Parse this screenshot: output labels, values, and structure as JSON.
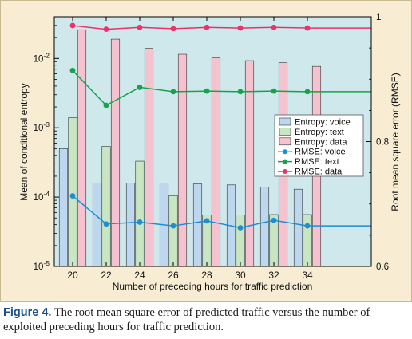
{
  "chart_data": {
    "type": "bar",
    "xlabel": "Number of preceding hours for traffic prediction",
    "ylabel_left": "Mean of conditional entropy",
    "ylabel_right": "Root mean square error (RMSE)",
    "categories": [
      20,
      22,
      24,
      26,
      28,
      30,
      32,
      34
    ],
    "x_ticks": [
      "20",
      "22",
      "24",
      "26",
      "28",
      "30",
      "32",
      "34"
    ],
    "left_axis": {
      "scale": "log",
      "ylim": [
        1e-05,
        0.04
      ],
      "ticks": [
        {
          "value": 1e-05,
          "base": "10",
          "exp": "-5"
        },
        {
          "value": 0.0001,
          "base": "10",
          "exp": "-4"
        },
        {
          "value": 0.001,
          "base": "10",
          "exp": "-3"
        },
        {
          "value": 0.01,
          "base": "10",
          "exp": "-2"
        }
      ]
    },
    "right_axis": {
      "scale": "linear",
      "ylim": [
        0.6,
        1.0
      ],
      "ticks": [
        "0.6",
        "0.8",
        "1"
      ],
      "tick_values": [
        0.6,
        0.8,
        1.0
      ]
    },
    "bar_series": [
      {
        "name": "Entropy: voice",
        "color": "#bdd7ee",
        "values": [
          0.0005,
          0.00016,
          0.00016,
          0.00016,
          0.000155,
          0.00015,
          0.00014,
          0.00013
        ]
      },
      {
        "name": "Entropy: text",
        "color": "#c9e6c3",
        "values": [
          0.0014,
          0.00054,
          0.00033,
          0.000105,
          5.5e-05,
          5.5e-05,
          5.6e-05,
          5.6e-05
        ]
      },
      {
        "name": "Entropy: data",
        "color": "#f5c3cf",
        "values": [
          0.026,
          0.019,
          0.014,
          0.0115,
          0.0102,
          0.0093,
          0.0087,
          0.0077
        ]
      }
    ],
    "line_series": [
      {
        "name": "RMSE: voice",
        "color": "#1a8fd6",
        "values": [
          0.713,
          0.668,
          0.671,
          0.665,
          0.673,
          0.662,
          0.674,
          0.665
        ]
      },
      {
        "name": "RMSE: text",
        "color": "#17a34a",
        "values": [
          0.914,
          0.858,
          0.887,
          0.88,
          0.881,
          0.88,
          0.881,
          0.88
        ]
      },
      {
        "name": "RMSE: data",
        "color": "#e8336b",
        "values": [
          0.986,
          0.98,
          0.983,
          0.981,
          0.983,
          0.982,
          0.983,
          0.982
        ]
      }
    ],
    "legend_position": "right-middle",
    "plot_background": "#cfe8ec"
  },
  "caption": {
    "label": "Figure 4.",
    "text": "The root mean square error of predicted traffic versus the number of exploited preceding hours for traffic prediction."
  }
}
